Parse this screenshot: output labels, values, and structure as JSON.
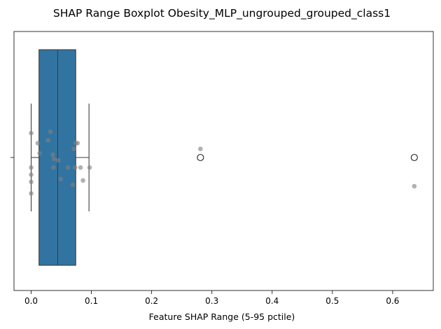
{
  "chart_data": {
    "type": "boxplot",
    "title": "SHAP Range Boxplot Obesity_MLP_ungrouped_grouped_class1",
    "xlabel": "Feature SHAP Range (5-95 pctile)",
    "ylabel": "",
    "xlim": [
      -0.0285,
      0.6675
    ],
    "xticks": [
      0.0,
      0.1,
      0.2,
      0.3,
      0.4,
      0.5,
      0.6
    ],
    "xtick_labels": [
      "0.0",
      "0.1",
      "0.2",
      "0.3",
      "0.4",
      "0.5",
      "0.6"
    ],
    "grid": false,
    "box": {
      "whisker_low": 0.0,
      "q1": 0.013,
      "median": 0.044,
      "q3": 0.074,
      "whisker_high": 0.096,
      "outliers": [
        0.281,
        0.636
      ],
      "color": "#3274a1"
    },
    "strip_points": [
      {
        "x": 0.0,
        "y": -0.17
      },
      {
        "x": 0.0,
        "y": 0.07
      },
      {
        "x": 0.0,
        "y": 0.12
      },
      {
        "x": 0.0,
        "y": 0.17
      },
      {
        "x": 0.0,
        "y": 0.25
      },
      {
        "x": 0.011,
        "y": -0.1
      },
      {
        "x": 0.014,
        "y": -0.03
      },
      {
        "x": 0.028,
        "y": -0.12
      },
      {
        "x": 0.032,
        "y": -0.18
      },
      {
        "x": 0.036,
        "y": -0.02
      },
      {
        "x": 0.038,
        "y": 0.01
      },
      {
        "x": 0.037,
        "y": 0.07
      },
      {
        "x": 0.045,
        "y": 0.02
      },
      {
        "x": 0.049,
        "y": 0.15
      },
      {
        "x": 0.061,
        "y": 0.07
      },
      {
        "x": 0.069,
        "y": 0.19
      },
      {
        "x": 0.071,
        "y": -0.06
      },
      {
        "x": 0.073,
        "y": 0.07
      },
      {
        "x": 0.074,
        "y": -0.1
      },
      {
        "x": 0.077,
        "y": -0.1
      },
      {
        "x": 0.082,
        "y": 0.07
      },
      {
        "x": 0.086,
        "y": 0.16
      },
      {
        "x": 0.097,
        "y": 0.07
      },
      {
        "x": 0.281,
        "y": -0.06
      },
      {
        "x": 0.636,
        "y": 0.2
      }
    ],
    "point_color": "#808080"
  }
}
